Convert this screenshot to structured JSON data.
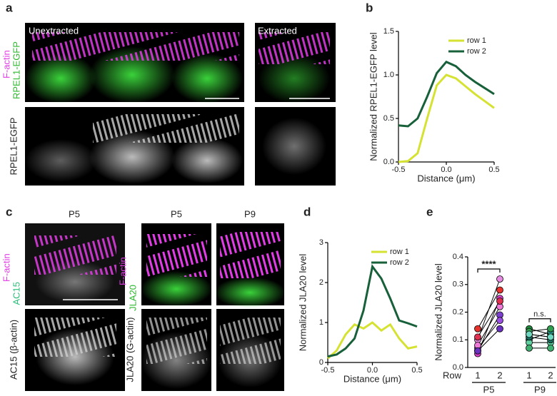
{
  "figure": {
    "a": {
      "label": "a",
      "channel_top": "F-actin",
      "channel_bottom": "RPEL1-EGFP",
      "gray_label": "RPEL1-EGFP",
      "conditions": [
        "Unextracted",
        "Extracted"
      ]
    },
    "c": {
      "label": "c",
      "left": {
        "age": "P5",
        "channel_top": "F-actin",
        "channel_bottom": "AC15",
        "gray_label": "AC15 (β-actin)"
      },
      "right": {
        "ages": [
          "P5",
          "P9"
        ],
        "channel_top": "F-actin",
        "channel_bottom": "JLA20",
        "gray_label": "JLA20 (G-actin)"
      }
    },
    "panel_labels": {
      "b": "b",
      "d": "d",
      "e": "e"
    }
  },
  "chart_data": [
    {
      "type": "line",
      "xlabel": "Distance (μm)",
      "ylabel": "Normalized RPEL1-EGFP level",
      "x": [
        -0.5,
        -0.4,
        -0.3,
        -0.2,
        -0.1,
        0,
        0.1,
        0.2,
        0.3,
        0.4,
        0.5
      ],
      "xlim": [
        -0.5,
        0.5
      ],
      "xticks": [
        -0.5,
        {
          "value": 0,
          "label": "0.0"
        },
        0.5
      ],
      "ylim": [
        0,
        1.5
      ],
      "yticks": [
        {
          "value": 0,
          "label": "0.0"
        },
        0.5,
        {
          "value": 1,
          "label": "1.0"
        },
        1.5
      ],
      "legend": "upper right",
      "series": [
        {
          "name": "row 1",
          "color": "#d6e232",
          "values": [
            0,
            0.01,
            0.1,
            0.5,
            0.88,
            1.0,
            0.96,
            0.87,
            0.78,
            0.7,
            0.62
          ]
        },
        {
          "name": "row 2",
          "color": "#17603a",
          "values": [
            0.42,
            0.41,
            0.5,
            0.75,
            1.02,
            1.15,
            1.1,
            1.0,
            0.92,
            0.85,
            0.78
          ]
        }
      ]
    },
    {
      "type": "line",
      "xlabel": "Distance (μm)",
      "ylabel": "Normalized JLA20 level",
      "x": [
        -0.5,
        -0.4,
        -0.3,
        -0.2,
        -0.1,
        0,
        0.1,
        0.2,
        0.3,
        0.4,
        0.5
      ],
      "xlim": [
        -0.5,
        0.5
      ],
      "xticks": [
        -0.5,
        {
          "value": 0,
          "label": "0.0"
        },
        0.5
      ],
      "ylim": [
        0,
        3
      ],
      "yticks": [
        0,
        1,
        2,
        3
      ],
      "legend": "upper right",
      "series": [
        {
          "name": "row 1",
          "color": "#d6e232",
          "values": [
            0.1,
            0.3,
            0.7,
            0.95,
            0.85,
            1.0,
            0.8,
            0.95,
            0.6,
            0.35,
            0.4
          ]
        },
        {
          "name": "row 2",
          "color": "#17603a",
          "values": [
            0.15,
            0.2,
            0.35,
            0.6,
            1.3,
            2.4,
            2.1,
            1.6,
            1.05,
            0.98,
            0.9
          ]
        }
      ]
    },
    {
      "type": "paired-dot",
      "xlabel": "Row",
      "ylabel": "Normalized JLA20 level",
      "ylim": [
        0,
        0.4
      ],
      "yticks": [
        {
          "value": 0,
          "label": "0.0"
        },
        0.1,
        0.2,
        0.3,
        0.4
      ],
      "groups": [
        {
          "name": "P5",
          "categories": [
            "1",
            "2"
          ],
          "annotation": "****",
          "series": [
            {
              "color": "#e8322c",
              "values": [
                0.14,
                0.28
              ]
            },
            {
              "color": "#e58be0",
              "values": [
                0.1,
                0.32
              ]
            },
            {
              "color": "#7b3fd0",
              "values": [
                0.06,
                0.19
              ]
            },
            {
              "color": "#d640c8",
              "values": [
                0.05,
                0.25
              ]
            },
            {
              "color": "#9a50e0",
              "values": [
                0.07,
                0.17
              ]
            },
            {
              "color": "#f07ad8",
              "values": [
                0.08,
                0.22
              ]
            },
            {
              "color": "#6a30c0",
              "values": [
                0.06,
                0.14
              ]
            },
            {
              "color": "#e03050",
              "values": [
                0.11,
                0.24
              ]
            }
          ]
        },
        {
          "name": "P9",
          "categories": [
            "1",
            "2"
          ],
          "annotation": "n.s.",
          "series": [
            {
              "color": "#1f8a3c",
              "values": [
                0.14,
                0.12
              ]
            },
            {
              "color": "#3cc060",
              "values": [
                0.12,
                0.11
              ]
            },
            {
              "color": "#2a9a8a",
              "values": [
                0.1,
                0.13
              ]
            },
            {
              "color": "#60d0a0",
              "values": [
                0.09,
                0.09
              ]
            },
            {
              "color": "#1a7060",
              "values": [
                0.11,
                0.1
              ]
            },
            {
              "color": "#40b070",
              "values": [
                0.07,
                0.07
              ]
            },
            {
              "color": "#30a050",
              "values": [
                0.13,
                0.14
              ]
            },
            {
              "color": "#70d8c0",
              "values": [
                0.12,
                0.11
              ]
            }
          ]
        }
      ]
    }
  ]
}
